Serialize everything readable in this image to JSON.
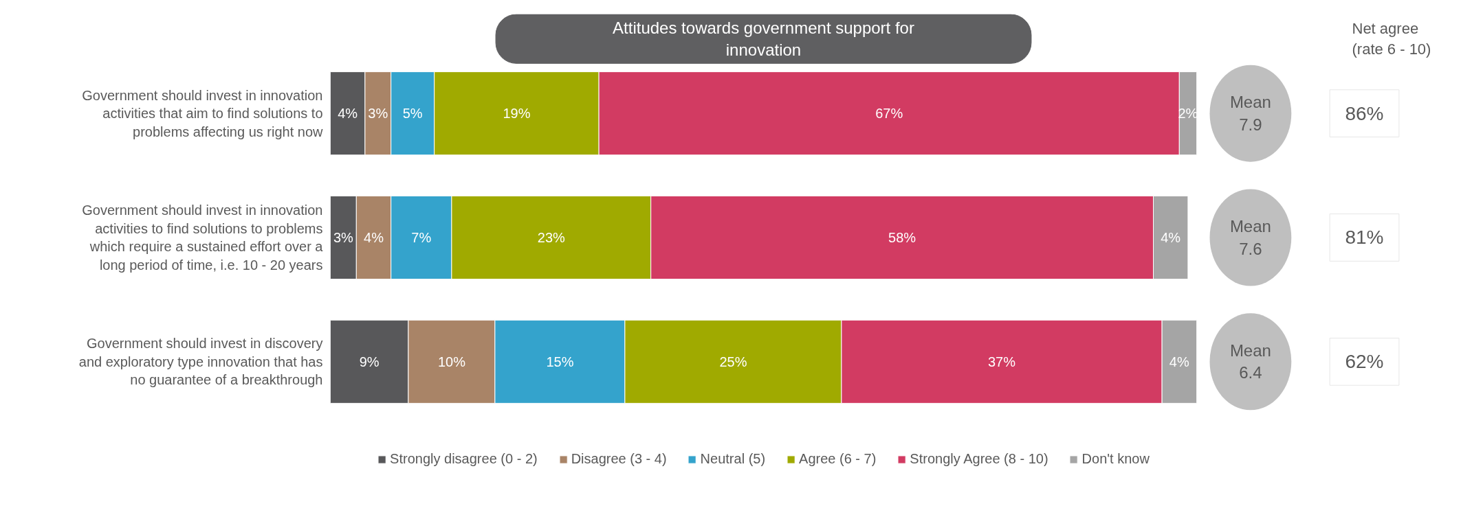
{
  "chart_data": {
    "type": "bar",
    "orientation": "horizontal",
    "stacked": true,
    "title": "Attitudes towards government support for innovation",
    "categories": [
      "Government should invest in innovation activities that aim to find solutions to problems affecting us right now",
      "Government should invest in innovation activities to find solutions to problems which require a sustained effort over a long period of time, i.e. 10 - 20 years",
      "Government should invest in discovery and exploratory type innovation that has no guarantee of a breakthrough"
    ],
    "series": [
      {
        "name": "Strongly disagree (0 - 2)",
        "color": "#58585a",
        "values": [
          4,
          3,
          9
        ],
        "value_labels": [
          "4%",
          "3%",
          "9%"
        ]
      },
      {
        "name": "Disagree (3 - 4)",
        "color": "#a98467",
        "values": [
          3,
          4,
          10
        ],
        "value_labels": [
          "3%",
          "4%",
          "10%"
        ]
      },
      {
        "name": "Neutral (5)",
        "color": "#34a3cc",
        "values": [
          5,
          7,
          15
        ],
        "value_labels": [
          "5%",
          "7%",
          "15%"
        ]
      },
      {
        "name": "Agree (6 - 7)",
        "color": "#a0aa00",
        "values": [
          19,
          23,
          25
        ],
        "value_labels": [
          "19%",
          "23%",
          "25%"
        ]
      },
      {
        "name": "Strongly Agree (8 - 10)",
        "color": "#d23b62",
        "values": [
          67,
          58,
          37
        ],
        "value_labels": [
          "67%",
          "58%",
          "37%"
        ]
      },
      {
        "name": "Don't know",
        "color": "#a5a5a5",
        "values": [
          2,
          4,
          4
        ],
        "value_labels": [
          "2%",
          "4%",
          "4%"
        ]
      }
    ],
    "xlim": [
      0,
      100
    ],
    "tick_labels": "y",
    "legend": "bottom",
    "annotations": [
      "Net agree (rate 6 - 10)",
      "Mean 7.9",
      "Mean 7.6",
      "Mean 6.4",
      "86%",
      "81%",
      "62%"
    ]
  }
}
